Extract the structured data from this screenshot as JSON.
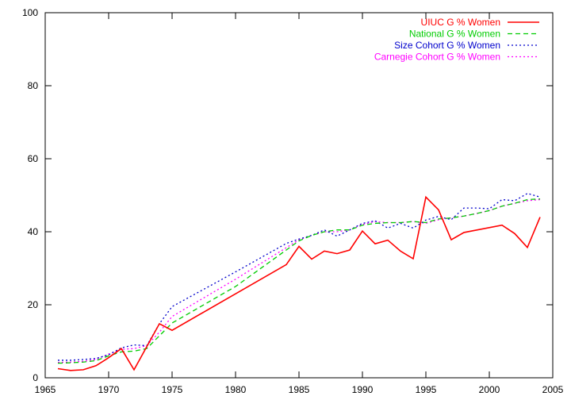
{
  "chart_data": {
    "type": "line",
    "title": "",
    "xlabel": "",
    "ylabel": "",
    "xlim": [
      1965,
      2005
    ],
    "ylim": [
      0,
      100
    ],
    "x_ticks": [
      1965,
      1970,
      1975,
      1980,
      1985,
      1990,
      1995,
      2000,
      2005
    ],
    "y_ticks": [
      0,
      20,
      40,
      60,
      80,
      100
    ],
    "grid": false,
    "legend_position": "top-right",
    "series": [
      {
        "name": "UIUC G % Women",
        "color": "#ff0000",
        "dash": "solid",
        "points": [
          [
            1966,
            2.5
          ],
          [
            1967,
            2.0
          ],
          [
            1968,
            2.2
          ],
          [
            1969,
            3.3
          ],
          [
            1970,
            5.5
          ],
          [
            1971,
            8.0
          ],
          [
            1972,
            2.2
          ],
          [
            1973,
            8.5
          ],
          [
            1974,
            14.8
          ],
          [
            1975,
            13.0
          ],
          [
            1984,
            31.0
          ],
          [
            1985,
            36.0
          ],
          [
            1986,
            32.5
          ],
          [
            1987,
            34.7
          ],
          [
            1988,
            34.0
          ],
          [
            1989,
            35.0
          ],
          [
            1990,
            40.2
          ],
          [
            1991,
            36.7
          ],
          [
            1992,
            37.7
          ],
          [
            1993,
            34.7
          ],
          [
            1994,
            32.6
          ],
          [
            1995,
            49.5
          ],
          [
            1996,
            46.0
          ],
          [
            1997,
            37.8
          ],
          [
            1998,
            39.8
          ],
          [
            2001,
            41.8
          ],
          [
            2002,
            39.5
          ],
          [
            2003,
            35.7
          ],
          [
            2004,
            44.0
          ]
        ]
      },
      {
        "name": "National G % Women",
        "color": "#00cc00",
        "dash": "dashed",
        "points": [
          [
            1966,
            4.0
          ],
          [
            1967,
            4.1
          ],
          [
            1968,
            4.3
          ],
          [
            1969,
            4.7
          ],
          [
            1970,
            6.0
          ],
          [
            1971,
            7.1
          ],
          [
            1972,
            7.3
          ],
          [
            1973,
            8.0
          ],
          [
            1974,
            11.5
          ],
          [
            1975,
            15.0
          ],
          [
            1980,
            25.0
          ],
          [
            1985,
            37.5
          ],
          [
            1986,
            39.0
          ],
          [
            1987,
            40.0
          ],
          [
            1988,
            40.5
          ],
          [
            1989,
            40.5
          ],
          [
            1990,
            41.8
          ],
          [
            1991,
            42.3
          ],
          [
            1992,
            42.5
          ],
          [
            1993,
            42.5
          ],
          [
            1994,
            42.8
          ],
          [
            1995,
            42.5
          ],
          [
            1996,
            43.5
          ],
          [
            1997,
            43.8
          ],
          [
            1998,
            44.3
          ],
          [
            1999,
            45.0
          ],
          [
            2000,
            45.8
          ],
          [
            2001,
            47.0
          ],
          [
            2002,
            47.8
          ],
          [
            2003,
            48.8
          ],
          [
            2004,
            49.0
          ]
        ]
      },
      {
        "name": "Size Cohort G % Women",
        "color": "#0000cc",
        "dash": "dotted",
        "points": [
          [
            1966,
            4.8
          ],
          [
            1967,
            4.8
          ],
          [
            1968,
            5.0
          ],
          [
            1969,
            5.3
          ],
          [
            1970,
            6.3
          ],
          [
            1971,
            8.2
          ],
          [
            1972,
            9.0
          ],
          [
            1973,
            8.8
          ],
          [
            1974,
            14.8
          ],
          [
            1975,
            19.5
          ],
          [
            1980,
            29.0
          ],
          [
            1984,
            36.8
          ],
          [
            1985,
            38.0
          ],
          [
            1986,
            39.0
          ],
          [
            1987,
            40.5
          ],
          [
            1988,
            38.8
          ],
          [
            1989,
            40.5
          ],
          [
            1990,
            42.3
          ],
          [
            1991,
            43.0
          ],
          [
            1992,
            41.0
          ],
          [
            1993,
            42.3
          ],
          [
            1994,
            41.0
          ],
          [
            1995,
            43.2
          ],
          [
            1996,
            44.2
          ],
          [
            1997,
            43.3
          ],
          [
            1998,
            46.5
          ],
          [
            1999,
            46.5
          ],
          [
            2000,
            46.3
          ],
          [
            2001,
            48.8
          ],
          [
            2002,
            48.5
          ],
          [
            2003,
            50.5
          ],
          [
            2004,
            49.5
          ]
        ]
      },
      {
        "name": "Carnegie Cohort G % Women",
        "color": "#ff00ff",
        "dash": "dotted",
        "points": [
          [
            1966,
            4.2
          ],
          [
            1967,
            4.3
          ],
          [
            1968,
            4.5
          ],
          [
            1969,
            5.0
          ],
          [
            1970,
            6.5
          ],
          [
            1971,
            7.8
          ],
          [
            1972,
            8.0
          ],
          [
            1973,
            8.8
          ],
          [
            1974,
            12.5
          ],
          [
            1975,
            16.8
          ],
          [
            1980,
            27.0
          ],
          [
            1985,
            37.8
          ],
          [
            1986,
            39.0
          ],
          [
            1987,
            40.0
          ],
          [
            1988,
            40.0
          ],
          [
            1989,
            40.5
          ],
          [
            1990,
            42.0
          ],
          [
            1991,
            42.8
          ],
          [
            1992,
            42.5
          ],
          [
            1993,
            42.5
          ],
          [
            1994,
            42.8
          ],
          [
            1995,
            42.3
          ],
          [
            1996,
            43.3
          ],
          [
            1997,
            43.8
          ],
          [
            1998,
            44.3
          ],
          [
            1999,
            45.0
          ],
          [
            2000,
            45.8
          ],
          [
            2001,
            47.0
          ],
          [
            2002,
            47.8
          ],
          [
            2003,
            48.5
          ],
          [
            2004,
            48.8
          ]
        ]
      }
    ]
  }
}
